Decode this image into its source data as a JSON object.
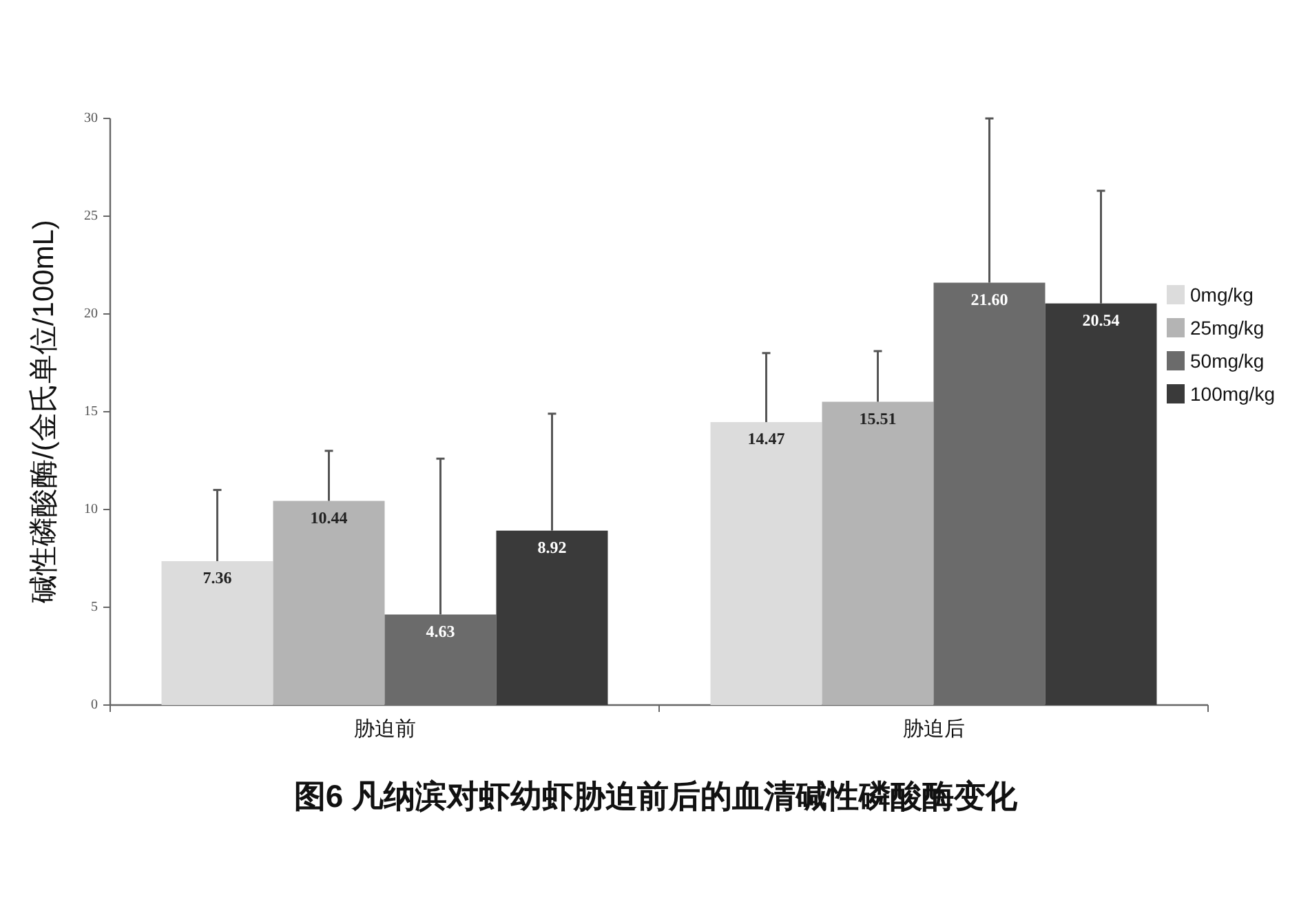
{
  "chart_data": {
    "type": "bar",
    "title": "图6 凡纳滨对虾幼虾胁迫前后的血清碱性磷酸酶变化",
    "ylabel": "碱性磷酸酶/(金氏单位/100mL)",
    "categories": [
      "胁迫前",
      "胁迫后"
    ],
    "series": [
      {
        "name": "0mg/kg",
        "color": "#dcdcdc",
        "values": [
          7.36,
          14.47
        ],
        "errors": [
          [
            7.36,
            11.0
          ],
          [
            14.47,
            18.0
          ]
        ],
        "value_labels": [
          "7.36",
          "14.47"
        ]
      },
      {
        "name": "25mg/kg",
        "color": "#b4b4b4",
        "values": [
          10.44,
          15.51
        ],
        "errors": [
          [
            10.44,
            13.0
          ],
          [
            15.51,
            18.1
          ]
        ],
        "value_labels": [
          "10.44",
          "15.51"
        ]
      },
      {
        "name": "50mg/kg",
        "color": "#6b6b6b",
        "values": [
          4.63,
          21.6
        ],
        "errors": [
          [
            4.63,
            12.6
          ],
          [
            21.6,
            30.0
          ]
        ],
        "value_labels": [
          "4.63",
          "21.60"
        ]
      },
      {
        "name": "100mg/kg",
        "color": "#3a3a3a",
        "values": [
          8.92,
          20.54
        ],
        "errors": [
          [
            8.92,
            14.9
          ],
          [
            20.54,
            26.3
          ]
        ],
        "value_labels": [
          "8.92",
          "20.54"
        ]
      }
    ],
    "ylim": [
      0,
      30
    ],
    "yticks": [
      0,
      5,
      10,
      15,
      20,
      25,
      30
    ],
    "legend": "right",
    "grid": false
  }
}
